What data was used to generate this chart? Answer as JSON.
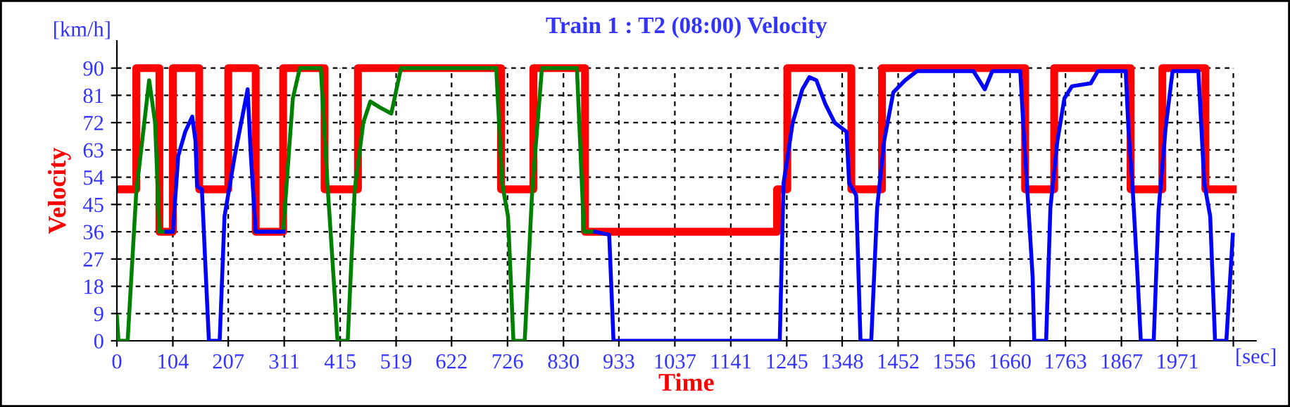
{
  "chart_data": {
    "type": "line",
    "title": "Train 1 : T2 (08:00) Velocity",
    "xlabel": "Time",
    "ylabel": "Velocity",
    "annotations": [
      "[km/h]",
      "[sec]"
    ],
    "xlim": [
      0,
      2117
    ],
    "ylim": [
      0,
      99
    ],
    "xticks": [
      0,
      104,
      207,
      311,
      415,
      519,
      622,
      726,
      830,
      933,
      1037,
      1141,
      1245,
      1348,
      1452,
      1556,
      1660,
      1763,
      1867,
      1971,
      {
        "value": 2075,
        "label": null
      }
    ],
    "yticks": [
      0,
      9,
      18,
      27,
      36,
      45,
      54,
      63,
      72,
      81,
      90
    ],
    "grid": true,
    "legend": false,
    "series": [
      {
        "type": "step",
        "color": "#ff0000",
        "x": [
          0,
          36,
          79,
          104,
          153,
          207,
          258,
          309,
          386,
          448,
          714,
          774,
          870,
          1227,
          1246,
          1365,
          1422,
          1688,
          1742,
          1884,
          1943,
          2023,
          2074
        ],
        "values": [
          50,
          90,
          36,
          90,
          50,
          90,
          36,
          90,
          50,
          90,
          50,
          90,
          36,
          50,
          90,
          50,
          90,
          50,
          90,
          50,
          90,
          50,
          50
        ]
      },
      {
        "color": "#008000",
        "x": [
          0,
          3,
          20,
          36,
          60,
          71,
          79,
          104,
          180,
          258,
          309,
          327,
          340,
          379,
          392,
          406,
          410,
          429,
          442,
          458,
          471,
          489,
          510,
          528,
          705,
          716,
          727,
          737,
          758,
          772,
          790,
          855,
          868,
          889
        ],
        "values": [
          8,
          0,
          0,
          49,
          86,
          72,
          36,
          36,
          null,
          36,
          36,
          80,
          90,
          90,
          50,
          12,
          0,
          0,
          50,
          72,
          79,
          77,
          75,
          90,
          90,
          52,
          41,
          0,
          0,
          50,
          90,
          90,
          36,
          36
        ]
      },
      {
        "color": "#0000ff",
        "x": [
          92,
          104,
          114,
          127,
          140,
          146,
          149,
          158,
          166,
          171,
          191,
          200,
          219,
          243,
          249,
          258,
          309,
          600,
          889,
          915,
          923,
          1232,
          1239,
          1256,
          1274,
          1287,
          1300,
          1317,
          1334,
          1356,
          1361,
          1374,
          1382,
          1402,
          1413,
          1426,
          1443,
          1465,
          1487,
          1592,
          1613,
          1627,
          1679,
          1685,
          1692,
          1702,
          1705,
          1727,
          1735,
          1748,
          1761,
          1775,
          1810,
          1823,
          1875,
          1880,
          1888,
          1897,
          1903,
          1927,
          1936,
          1949,
          1962,
          2010,
          2021,
          2032,
          2041,
          2062,
          2074
        ],
        "values": [
          36,
          36,
          61,
          69,
          74,
          66,
          51,
          50,
          19,
          0,
          0,
          41,
          61,
          83,
          61,
          36,
          36,
          null,
          36,
          35,
          0,
          0,
          52,
          72,
          83,
          87,
          86,
          78,
          72,
          69,
          52,
          48,
          0,
          0,
          44,
          66,
          82,
          86,
          89,
          89,
          83,
          89,
          89,
          70,
          50,
          21,
          0,
          0,
          44,
          66,
          80,
          84,
          85,
          89,
          89,
          70,
          50,
          21,
          0,
          0,
          43,
          70,
          89,
          89,
          52,
          41,
          0,
          0,
          35
        ]
      }
    ]
  }
}
